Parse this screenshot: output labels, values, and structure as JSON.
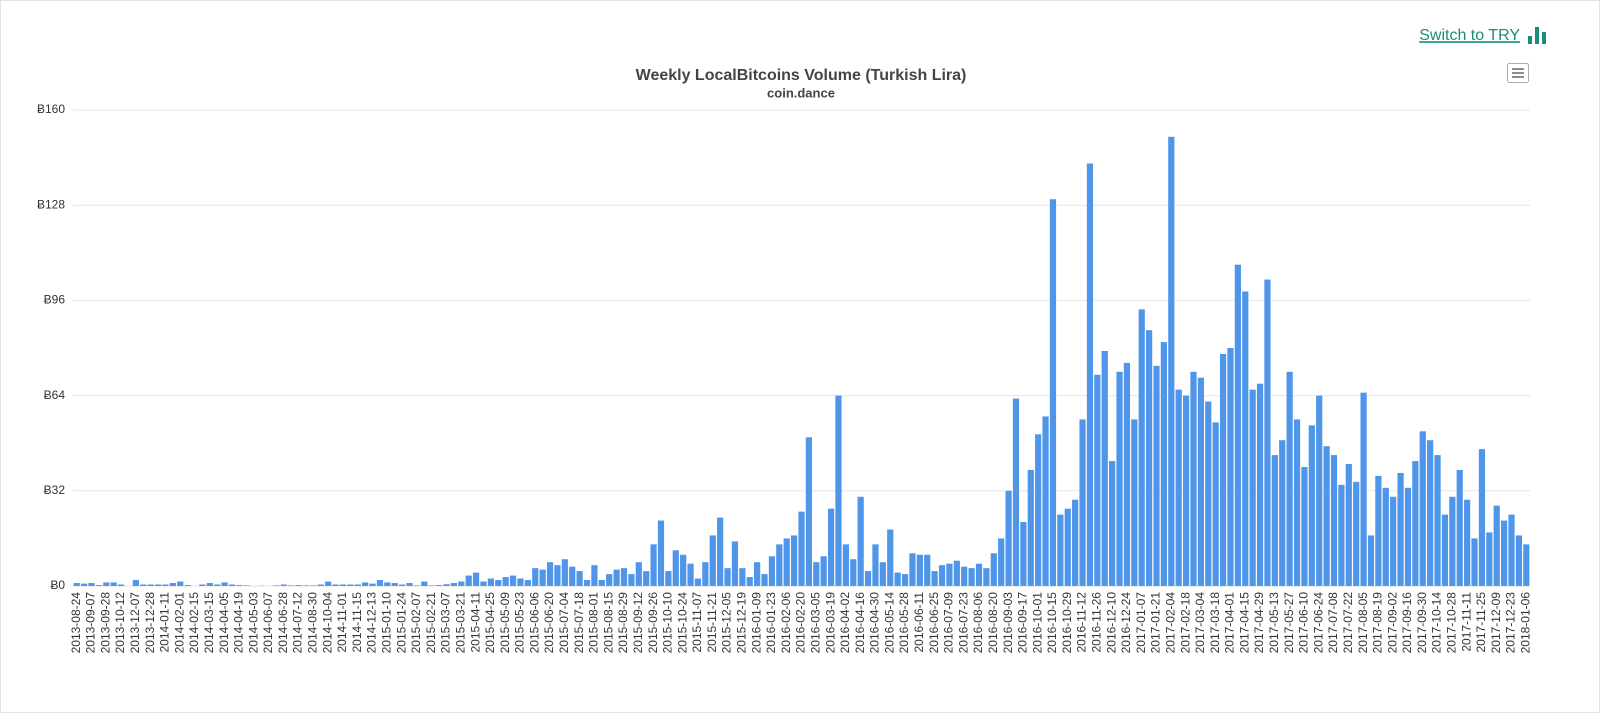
{
  "link": "Switch to TRY",
  "chart_data": {
    "type": "bar",
    "title": "Weekly LocalBitcoins Volume (Turkish Lira)",
    "subtitle": "coin.dance",
    "color": "#4f95ea",
    "grid": true,
    "ylim": [
      0,
      160
    ],
    "yticks": [
      {
        "value": 0,
        "label": "Ƀ0"
      },
      {
        "value": 32,
        "label": "Ƀ32"
      },
      {
        "value": 64,
        "label": "Ƀ64"
      },
      {
        "value": 96,
        "label": "Ƀ96"
      },
      {
        "value": 128,
        "label": "Ƀ128"
      },
      {
        "value": 160,
        "label": "Ƀ160"
      }
    ],
    "categories": [
      "2013-08-24",
      null,
      "2013-09-07",
      null,
      "2013-09-28",
      null,
      "2013-10-12",
      null,
      "2013-12-07",
      null,
      "2013-12-28",
      null,
      "2014-01-11",
      null,
      "2014-02-01",
      null,
      "2014-02-15",
      null,
      "2014-03-15",
      null,
      "2014-04-05",
      null,
      "2014-04-19",
      null,
      "2014-05-03",
      null,
      "2014-06-07",
      null,
      "2014-06-28",
      null,
      "2014-07-12",
      null,
      "2014-08-30",
      null,
      "2014-10-04",
      null,
      "2014-11-01",
      null,
      "2014-11-15",
      null,
      "2014-12-13",
      null,
      "2015-01-10",
      null,
      "2015-01-24",
      null,
      "2015-02-07",
      null,
      "2015-02-21",
      null,
      "2015-03-07",
      null,
      "2015-03-21",
      null,
      "2015-04-11",
      null,
      "2015-04-25",
      null,
      "2015-05-09",
      null,
      "2015-05-23",
      null,
      "2015-06-06",
      null,
      "2015-06-20",
      null,
      "2015-07-04",
      null,
      "2015-07-18",
      null,
      "2015-08-01",
      null,
      "2015-08-15",
      null,
      "2015-08-29",
      null,
      "2015-09-12",
      null,
      "2015-09-26",
      null,
      "2015-10-10",
      null,
      "2015-10-24",
      null,
      "2015-11-07",
      null,
      "2015-11-21",
      null,
      "2015-12-05",
      null,
      "2015-12-19",
      null,
      "2016-01-09",
      null,
      "2016-01-23",
      null,
      "2016-02-06",
      null,
      "2016-02-20",
      null,
      "2016-03-05",
      null,
      "2016-03-19",
      null,
      "2016-04-02",
      null,
      "2016-04-16",
      null,
      "2016-04-30",
      null,
      "2016-05-14",
      null,
      "2016-05-28",
      null,
      "2016-06-11",
      null,
      "2016-06-25",
      null,
      "2016-07-09",
      null,
      "2016-07-23",
      null,
      "2016-08-06",
      null,
      "2016-08-20",
      null,
      "2016-09-03",
      null,
      "2016-09-17",
      null,
      "2016-10-01",
      null,
      "2016-10-15",
      null,
      "2016-10-29",
      null,
      "2016-11-12",
      null,
      "2016-11-26",
      null,
      "2016-12-10",
      null,
      "2016-12-24",
      null,
      "2017-01-07",
      null,
      "2017-01-21",
      null,
      "2017-02-04",
      null,
      "2017-02-18",
      null,
      "2017-03-04",
      null,
      "2017-03-18",
      null,
      "2017-04-01",
      null,
      "2017-04-15",
      null,
      "2017-04-29",
      null,
      "2017-05-13",
      null,
      "2017-05-27",
      null,
      "2017-06-10",
      null,
      "2017-06-24",
      null,
      "2017-07-08",
      null,
      "2017-07-22",
      null,
      "2017-08-05",
      null,
      "2017-08-19",
      null,
      "2017-09-02",
      null,
      "2017-09-16",
      null,
      "2017-09-30",
      null,
      "2017-10-14",
      null,
      "2017-10-28",
      null,
      "2017-11-11",
      null,
      "2017-11-25",
      null,
      "2017-12-09",
      null,
      "2017-12-23",
      null,
      "2018-01-06"
    ],
    "values": [
      1,
      0.8,
      1,
      0.3,
      1.2,
      1.2,
      0.5,
      0,
      2,
      0.5,
      0.5,
      0.5,
      0.5,
      1,
      1.5,
      0.3,
      0,
      0.5,
      1,
      0.5,
      1.2,
      0.5,
      0.3,
      0.2,
      0,
      0.1,
      0,
      0.2,
      0.5,
      0.2,
      0.3,
      0.2,
      0.2,
      0.5,
      1.5,
      0.5,
      0.5,
      0.5,
      0.5,
      1.2,
      0.8,
      2,
      1.2,
      1,
      0.5,
      1,
      0.2,
      1.5,
      0.2,
      0.3,
      0.6,
      1,
      1.5,
      3.5,
      4.5,
      1.5,
      2.5,
      2,
      3,
      3.5,
      2.5,
      2,
      6,
      5.5,
      8,
      7,
      9,
      6.5,
      5,
      2,
      7,
      2,
      4,
      5.5,
      6,
      4,
      8,
      5,
      14,
      22,
      5,
      12,
      10.5,
      7.5,
      2.5,
      8,
      17,
      23,
      6,
      15,
      6,
      3,
      8,
      4,
      10,
      14,
      16,
      17,
      25,
      50,
      8,
      10,
      26,
      64,
      14,
      9,
      30,
      5,
      14,
      8,
      19,
      4.5,
      4,
      11,
      10.5,
      10.5,
      5,
      7,
      7.5,
      8.5,
      6.5,
      6,
      7.5,
      6,
      11,
      16,
      32,
      63,
      21.5,
      39,
      51,
      57,
      130,
      24,
      26,
      29,
      56,
      142,
      71,
      79,
      42,
      72,
      75,
      56,
      93,
      86,
      74,
      82,
      151,
      66,
      64,
      72,
      70,
      62,
      55,
      78,
      80,
      108,
      99,
      66,
      68,
      103,
      44,
      49,
      72,
      56,
      40,
      54,
      64,
      47,
      44,
      34,
      41,
      35,
      65,
      17,
      37,
      33,
      30,
      38,
      33,
      42,
      52,
      49,
      44,
      24,
      30,
      39,
      29,
      16,
      46,
      18,
      27,
      22,
      24,
      17,
      14
    ]
  }
}
